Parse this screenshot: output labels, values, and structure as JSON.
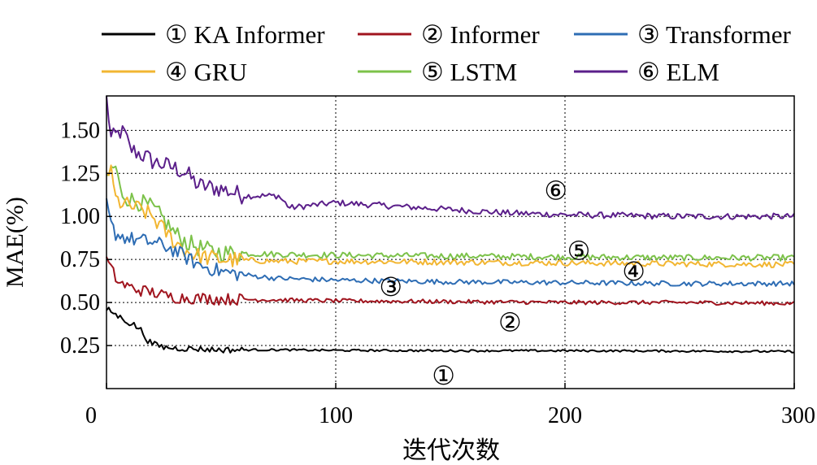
{
  "chart_data": {
    "type": "line",
    "xlabel": "迭代次数",
    "ylabel": "MAE(%)",
    "xlim": [
      0,
      300
    ],
    "ylim": [
      0,
      1.7
    ],
    "xticks": [
      0,
      100,
      200,
      300
    ],
    "xtick_labels": [
      "0",
      "100",
      "200",
      "300"
    ],
    "yticks": [
      0.25,
      0.5,
      0.75,
      1.0,
      1.25,
      1.5
    ],
    "ytick_labels": [
      "0.25",
      "0.50",
      "0.75",
      "1.00",
      "1.25",
      "1.50"
    ],
    "grid": "dotted at x ticks and y ticks",
    "legend_position": "top",
    "series": [
      {
        "name": "① KA Informer",
        "color": "#000000",
        "x": [
          0,
          2,
          5,
          8,
          10,
          12,
          15,
          18,
          20,
          25,
          30,
          40,
          50,
          75,
          100,
          150,
          200,
          250,
          300
        ],
        "y": [
          0.46,
          0.45,
          0.42,
          0.4,
          0.38,
          0.37,
          0.34,
          0.28,
          0.26,
          0.24,
          0.235,
          0.23,
          0.225,
          0.225,
          0.222,
          0.22,
          0.22,
          0.218,
          0.215
        ]
      },
      {
        "name": "② Informer",
        "color": "#a0141e",
        "x": [
          0,
          3,
          5,
          8,
          10,
          15,
          20,
          25,
          30,
          40,
          50,
          75,
          100,
          150,
          200,
          250,
          300
        ],
        "y": [
          0.75,
          0.67,
          0.62,
          0.6,
          0.59,
          0.57,
          0.56,
          0.54,
          0.53,
          0.525,
          0.52,
          0.515,
          0.51,
          0.505,
          0.5,
          0.5,
          0.495
        ]
      },
      {
        "name": "③ Transformer",
        "color": "#2e6db4",
        "x": [
          0,
          2,
          4,
          6,
          8,
          10,
          15,
          20,
          25,
          30,
          35,
          40,
          45,
          50,
          60,
          75,
          100,
          125,
          150,
          200,
          250,
          300
        ],
        "y": [
          1.07,
          0.95,
          0.9,
          0.89,
          0.88,
          0.87,
          0.86,
          0.85,
          0.83,
          0.8,
          0.76,
          0.72,
          0.7,
          0.68,
          0.66,
          0.64,
          0.63,
          0.625,
          0.62,
          0.615,
          0.61,
          0.61
        ]
      },
      {
        "name": "④ GRU",
        "color": "#f2b632",
        "x": [
          0,
          2,
          4,
          6,
          8,
          10,
          15,
          20,
          25,
          30,
          35,
          40,
          45,
          50,
          60,
          75,
          100,
          150,
          200,
          250,
          300
        ],
        "y": [
          1.27,
          1.25,
          1.1,
          1.08,
          1.07,
          1.06,
          1.04,
          1.0,
          0.92,
          0.85,
          0.8,
          0.77,
          0.76,
          0.75,
          0.745,
          0.74,
          0.74,
          0.735,
          0.73,
          0.725,
          0.72
        ]
      },
      {
        "name": "⑤ LSTM",
        "color": "#7cc24a",
        "x": [
          0,
          2,
          4,
          6,
          8,
          10,
          15,
          20,
          25,
          30,
          35,
          40,
          45,
          50,
          60,
          75,
          100,
          150,
          200,
          250,
          300
        ],
        "y": [
          1.22,
          1.27,
          1.29,
          1.15,
          1.12,
          1.1,
          1.08,
          1.05,
          0.98,
          0.9,
          0.85,
          0.82,
          0.8,
          0.79,
          0.785,
          0.78,
          0.775,
          0.77,
          0.765,
          0.76,
          0.76
        ]
      },
      {
        "name": "⑥ ELM",
        "color": "#5b1f8a",
        "x": [
          0,
          2,
          4,
          6,
          8,
          10,
          12,
          15,
          18,
          20,
          25,
          30,
          35,
          40,
          50,
          60,
          75,
          80,
          100,
          125,
          150,
          175,
          200,
          250,
          300
        ],
        "y": [
          1.7,
          1.45,
          1.47,
          1.49,
          1.48,
          1.4,
          1.38,
          1.36,
          1.34,
          1.32,
          1.3,
          1.28,
          1.25,
          1.18,
          1.16,
          1.12,
          1.12,
          1.05,
          1.08,
          1.06,
          1.04,
          1.02,
          1.01,
          1.0,
          1.0
        ]
      }
    ],
    "annotations": [
      {
        "text": "①",
        "x": 147,
        "y": 0.075
      },
      {
        "text": "②",
        "x": 176,
        "y": 0.385
      },
      {
        "text": "③",
        "x": 124,
        "y": 0.59
      },
      {
        "text": "④",
        "x": 230,
        "y": 0.68
      },
      {
        "text": "⑤",
        "x": 206,
        "y": 0.8
      },
      {
        "text": "⑥",
        "x": 196,
        "y": 1.15
      }
    ]
  }
}
